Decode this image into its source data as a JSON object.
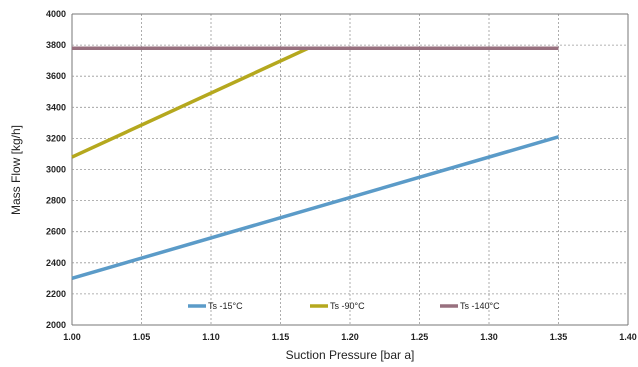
{
  "chart_data": {
    "type": "line",
    "title": "",
    "xlabel": "Suction Pressure [bar a]",
    "ylabel": "Mass Flow [kg/h]",
    "xlim": [
      1.0,
      1.4
    ],
    "ylim": [
      2000,
      4000
    ],
    "xticks": [
      "1.00",
      "1.05",
      "1.10",
      "1.15",
      "1.20",
      "1.25",
      "1.30",
      "1.35",
      "1.40"
    ],
    "yticks": [
      "2000",
      "2200",
      "2400",
      "2600",
      "2800",
      "3000",
      "3200",
      "3400",
      "3600",
      "3800",
      "4000"
    ],
    "grid": true,
    "legend_position": "bottom-inside",
    "series": [
      {
        "name": "Ts -15°C",
        "color": "#5b9bc8",
        "x": [
          1.0,
          1.35
        ],
        "y": [
          2300,
          3210
        ]
      },
      {
        "name": "Ts -90°C",
        "color": "#b5a81e",
        "x": [
          1.0,
          1.17,
          1.35
        ],
        "y": [
          3080,
          3780,
          3780
        ]
      },
      {
        "name": "Ts -140°C",
        "color": "#98707f",
        "x": [
          1.0,
          1.35
        ],
        "y": [
          3780,
          3780
        ]
      }
    ]
  }
}
